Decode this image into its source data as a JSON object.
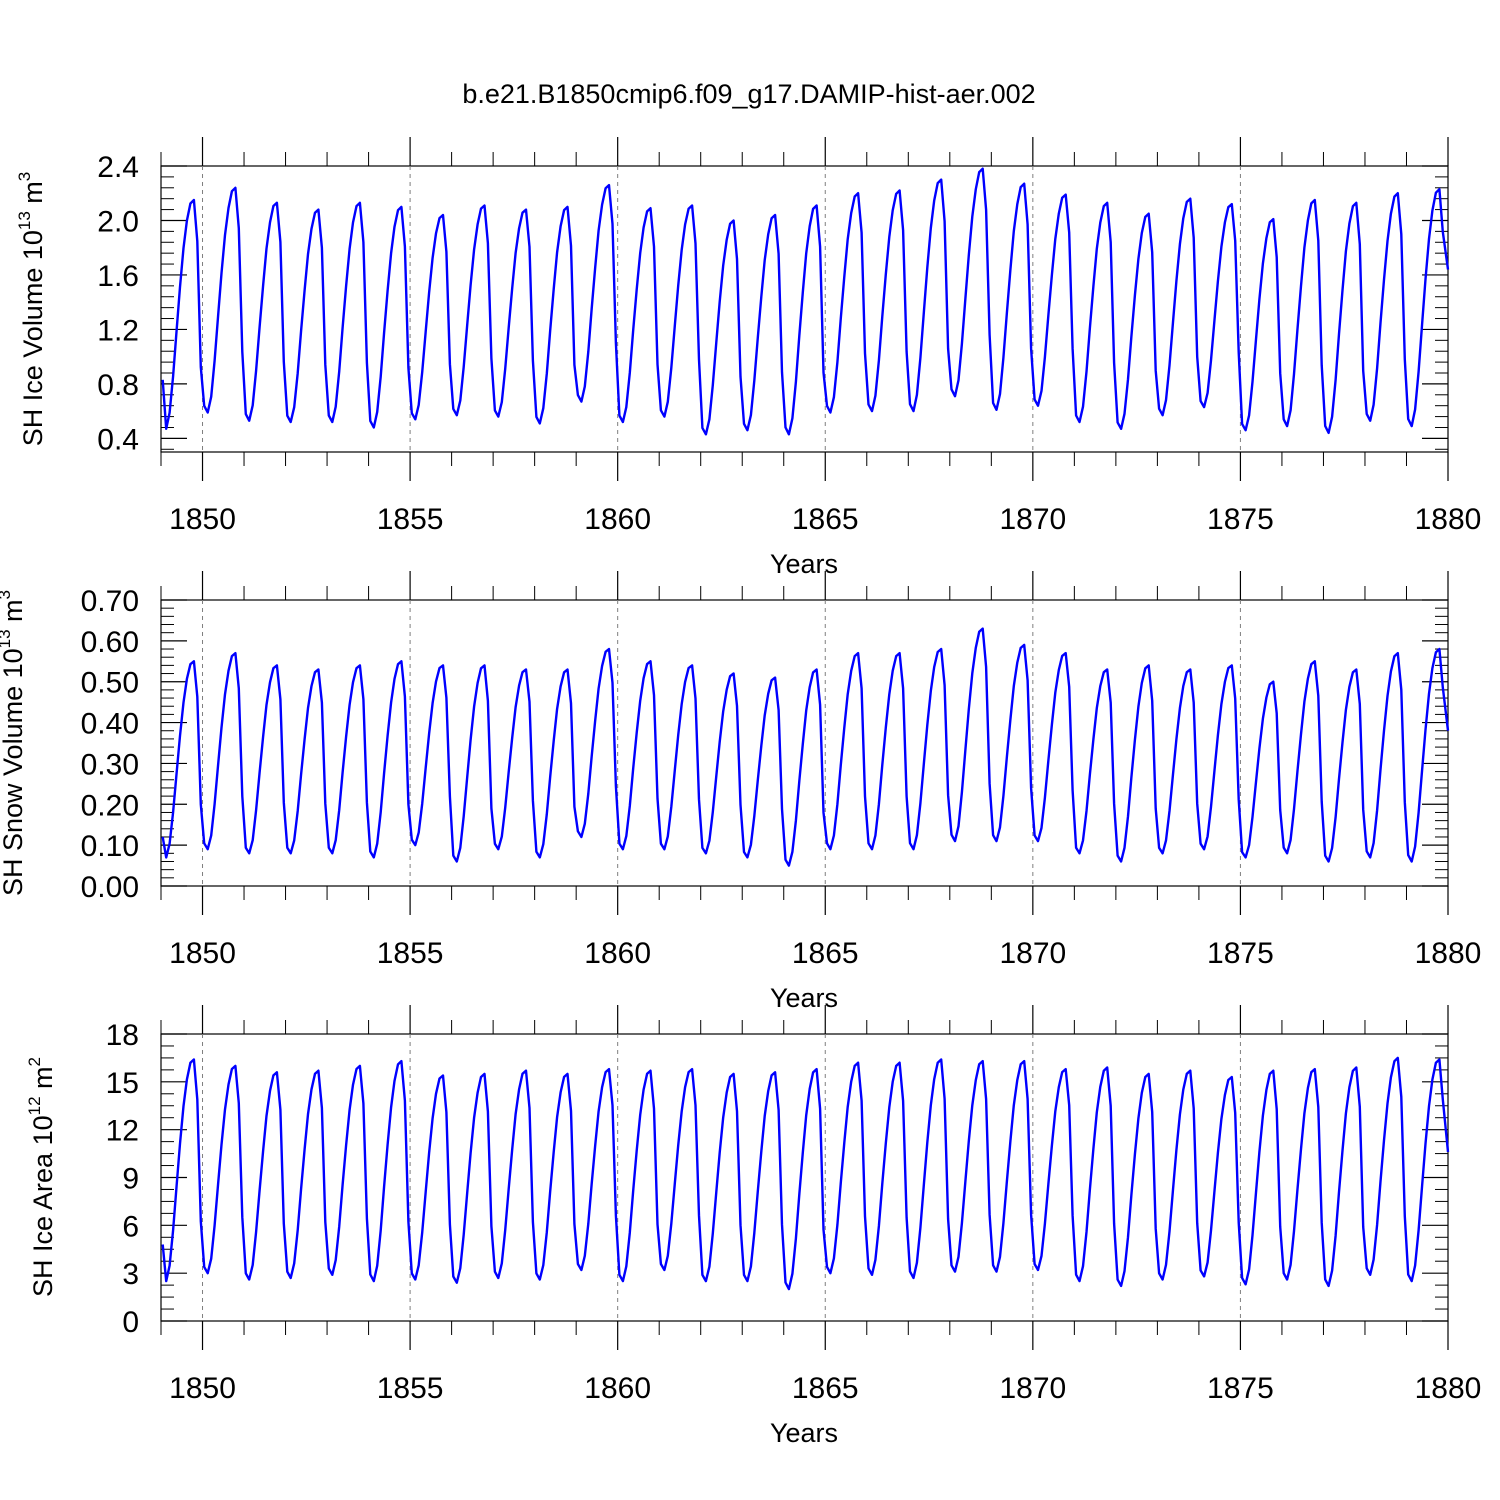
{
  "title": "b.e21.B1850cmip6.f09_g17.DAMIP-hist-aer.002",
  "colors": {
    "series": "#0000ff",
    "axes": "#000000",
    "gridline": "#7f7f7f"
  },
  "chart_data": [
    {
      "type": "line",
      "xlabel": "Years",
      "ylabel": {
        "prefix": "SH Ice Volume 10",
        "exp": "13",
        "unit": " m",
        "unit_exp": "3"
      },
      "xlim": [
        1849.0,
        1880.0
      ],
      "ylim": [
        0.3,
        2.4
      ],
      "xticks": [
        1850,
        1855,
        1860,
        1865,
        1870,
        1875,
        1880
      ],
      "yticks": [
        "0.4",
        "0.8",
        "1.2",
        "1.6",
        "2.0",
        "2.4"
      ],
      "vertical_dashed_lines_at": [
        1850,
        1855,
        1860,
        1865,
        1870,
        1875
      ],
      "series": [
        {
          "annual_peak_max": [
            2.15,
            2.24,
            2.13,
            2.08,
            2.13,
            2.1,
            2.04,
            2.11,
            2.08,
            2.1,
            2.26,
            2.09,
            2.11,
            2.0,
            2.04,
            2.11,
            2.2,
            2.22,
            2.3,
            2.38,
            2.27,
            2.19,
            2.13,
            2.05,
            2.16,
            2.12,
            2.01,
            2.15,
            2.13,
            2.2,
            2.23
          ],
          "annual_trough_min": [
            0.47,
            0.59,
            0.53,
            0.52,
            0.52,
            0.48,
            0.54,
            0.57,
            0.56,
            0.51,
            0.67,
            0.52,
            0.56,
            0.43,
            0.46,
            0.43,
            0.59,
            0.6,
            0.6,
            0.71,
            0.61,
            0.64,
            0.52,
            0.47,
            0.57,
            0.63,
            0.46,
            0.49,
            0.44,
            0.53,
            0.49
          ],
          "start_value": 0.83,
          "end_value": 1.64
        }
      ]
    },
    {
      "type": "line",
      "xlabel": "Years",
      "ylabel": {
        "prefix": "SH Snow Volume 10",
        "exp": "13",
        "unit": " m",
        "unit_exp": "3"
      },
      "xlim": [
        1849.0,
        1880.0
      ],
      "ylim": [
        0.0,
        0.7
      ],
      "xticks": [
        1850,
        1855,
        1860,
        1865,
        1870,
        1875,
        1880
      ],
      "yticks": [
        "0.00",
        "0.10",
        "0.20",
        "0.30",
        "0.40",
        "0.50",
        "0.60",
        "0.70"
      ],
      "vertical_dashed_lines_at": [
        1850,
        1855,
        1860,
        1865,
        1870,
        1875
      ],
      "series": [
        {
          "annual_peak_max": [
            0.55,
            0.57,
            0.54,
            0.53,
            0.54,
            0.55,
            0.54,
            0.54,
            0.53,
            0.53,
            0.58,
            0.55,
            0.54,
            0.52,
            0.51,
            0.53,
            0.57,
            0.57,
            0.58,
            0.63,
            0.59,
            0.57,
            0.53,
            0.54,
            0.53,
            0.54,
            0.5,
            0.55,
            0.53,
            0.57,
            0.58
          ],
          "annual_trough_min": [
            0.07,
            0.09,
            0.08,
            0.08,
            0.08,
            0.07,
            0.1,
            0.06,
            0.09,
            0.07,
            0.12,
            0.09,
            0.09,
            0.08,
            0.07,
            0.05,
            0.09,
            0.09,
            0.09,
            0.11,
            0.11,
            0.11,
            0.08,
            0.06,
            0.08,
            0.09,
            0.07,
            0.08,
            0.06,
            0.07,
            0.06
          ],
          "start_value": 0.12,
          "end_value": 0.38
        }
      ]
    },
    {
      "type": "line",
      "xlabel": "Years",
      "ylabel": {
        "prefix": "SH Ice Area 10",
        "exp": "12",
        "unit": " m",
        "unit_exp": "2"
      },
      "xlim": [
        1849.0,
        1880.0
      ],
      "ylim": [
        0,
        18
      ],
      "xticks": [
        1850,
        1855,
        1860,
        1865,
        1870,
        1875,
        1880
      ],
      "yticks": [
        "0",
        "3",
        "6",
        "9",
        "12",
        "15",
        "18"
      ],
      "vertical_dashed_lines_at": [
        1850,
        1855,
        1860,
        1865,
        1870,
        1875
      ],
      "series": [
        {
          "annual_peak_max": [
            16.4,
            16.0,
            15.6,
            15.7,
            16.0,
            16.3,
            15.4,
            15.5,
            15.7,
            15.5,
            15.8,
            15.7,
            15.8,
            15.5,
            15.6,
            15.8,
            16.2,
            16.2,
            16.4,
            16.3,
            16.3,
            15.8,
            15.9,
            15.5,
            15.7,
            15.3,
            15.7,
            15.8,
            15.9,
            16.5,
            16.4
          ],
          "annual_trough_min": [
            2.5,
            3.0,
            2.6,
            2.7,
            2.9,
            2.5,
            2.6,
            2.4,
            2.7,
            2.6,
            3.2,
            2.5,
            3.2,
            2.5,
            2.5,
            2.0,
            3.0,
            2.9,
            2.7,
            3.1,
            3.1,
            3.2,
            2.5,
            2.2,
            2.6,
            2.8,
            2.3,
            2.6,
            2.2,
            2.9,
            2.5
          ],
          "start_value": 4.8,
          "end_value": 10.6
        }
      ]
    }
  ]
}
